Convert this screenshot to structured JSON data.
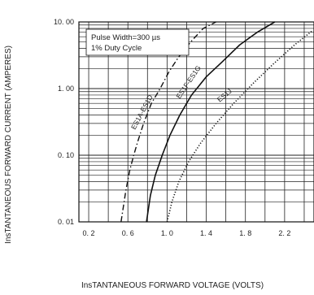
{
  "chart_data": {
    "type": "line",
    "xlabel": "InsTANTANEOUS FORWARD VOLTAGE (VOLTS)",
    "ylabel": "InsTANTANEOUS FORWARD CURRENT (AMPERES)",
    "xlim": [
      0.1,
      2.5
    ],
    "ylim": [
      0.01,
      10
    ],
    "y_scale": "log",
    "grid": true,
    "x_ticks": [
      0.2,
      0.6,
      1.0,
      1.4,
      1.8,
      2.2
    ],
    "x_tick_labels": [
      "0. 2",
      "0. 6",
      "1. 0",
      "1. 4",
      "1. 8",
      "2. 2"
    ],
    "y_ticks": [
      0.01,
      0.1,
      1,
      10
    ],
    "y_tick_labels": [
      "0. 01",
      "0. 10",
      "1. 00",
      "10. 00"
    ],
    "annotation": {
      "line1": "Pulse Width=300 µs",
      "line2": "1% Duty Cycle"
    },
    "series": [
      {
        "name": "ES1A-ES1D",
        "style": "dash-dot",
        "x": [
          0.53,
          0.58,
          0.62,
          0.66,
          0.7,
          0.76,
          0.84,
          0.93,
          1.02,
          1.12,
          1.24,
          1.37,
          1.5
        ],
        "y": [
          0.01,
          0.03,
          0.06,
          0.1,
          0.16,
          0.3,
          0.6,
          1.0,
          1.8,
          3.0,
          5.0,
          8.0,
          10.0
        ]
      },
      {
        "name": "ES1F-ES1G",
        "style": "solid",
        "x": [
          0.79,
          0.83,
          0.88,
          0.95,
          1.03,
          1.13,
          1.25,
          1.4,
          1.56,
          1.74,
          1.92,
          2.1
        ],
        "y": [
          0.01,
          0.025,
          0.05,
          0.1,
          0.2,
          0.4,
          0.8,
          1.5,
          2.5,
          4.5,
          7.0,
          10.0
        ]
      },
      {
        "name": "ES1J",
        "style": "dotted",
        "x": [
          1.0,
          1.05,
          1.12,
          1.22,
          1.34,
          1.5,
          1.68,
          1.88,
          2.08,
          2.3,
          2.49
        ],
        "y": [
          0.01,
          0.02,
          0.04,
          0.08,
          0.15,
          0.3,
          0.6,
          1.2,
          2.3,
          4.5,
          7.5
        ]
      }
    ],
    "curve_labels": {
      "a": "ES1A-ES1D",
      "f": "ES1F-ES1G",
      "j": "ES1J"
    },
    "colors": {
      "line": "#111111",
      "grid": "#222222",
      "text": "#222222"
    }
  }
}
